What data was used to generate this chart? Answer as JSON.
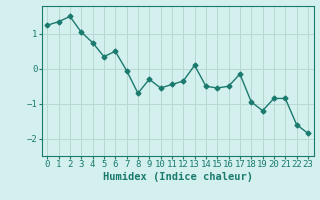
{
  "x": [
    0,
    1,
    2,
    3,
    4,
    5,
    6,
    7,
    8,
    9,
    10,
    11,
    12,
    13,
    14,
    15,
    16,
    17,
    18,
    19,
    20,
    21,
    22,
    23
  ],
  "y": [
    1.25,
    1.35,
    1.5,
    1.05,
    0.75,
    0.35,
    0.5,
    -0.05,
    -0.7,
    -0.3,
    -0.55,
    -0.45,
    -0.35,
    0.1,
    -0.5,
    -0.55,
    -0.5,
    -0.15,
    -0.95,
    -1.2,
    -0.85,
    -0.85,
    -1.6,
    -1.85
  ],
  "line_color": "#1a7a6e",
  "marker": "D",
  "marker_size": 2.5,
  "bg_color": "#d4f0ee",
  "grid_color": "#b8d8d4",
  "axis_color": "#1a7a6e",
  "xlabel": "Humidex (Indice chaleur)",
  "ylim": [
    -2.5,
    1.8
  ],
  "xlim": [
    -0.5,
    23.5
  ],
  "yticks": [
    -2,
    -1,
    0,
    1
  ],
  "xticks": [
    0,
    1,
    2,
    3,
    4,
    5,
    6,
    7,
    8,
    9,
    10,
    11,
    12,
    13,
    14,
    15,
    16,
    17,
    18,
    19,
    20,
    21,
    22,
    23
  ],
  "linewidth": 1.0,
  "font_size": 6.5,
  "xlabel_fontsize": 7.5
}
